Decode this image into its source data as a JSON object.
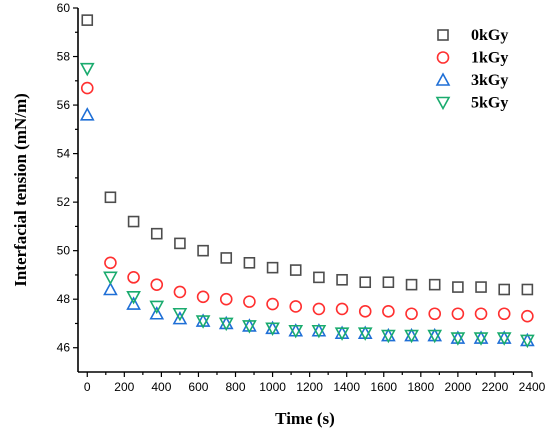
{
  "chart_data": {
    "type": "scatter",
    "xlabel": "Time (s)",
    "ylabel": "Interfacial tension (mN/m)",
    "xlim": [
      -50,
      2400
    ],
    "ylim": [
      45,
      60
    ],
    "xticks": [
      0,
      200,
      400,
      600,
      800,
      1000,
      1200,
      1400,
      1600,
      1800,
      2000,
      2200,
      2400
    ],
    "yticks": [
      46,
      48,
      50,
      52,
      54,
      56,
      58,
      60
    ],
    "grid": false,
    "legend_position": "top-right",
    "x": [
      0,
      125,
      250,
      375,
      500,
      625,
      750,
      875,
      1000,
      1125,
      1250,
      1375,
      1500,
      1625,
      1750,
      1875,
      2000,
      2125,
      2250,
      2375
    ],
    "series": [
      {
        "name": "0kGy",
        "marker": "square",
        "color": "#4d4d4d",
        "values": [
          59.5,
          52.2,
          51.2,
          50.7,
          50.3,
          50.0,
          49.7,
          49.5,
          49.3,
          49.2,
          48.9,
          48.8,
          48.7,
          48.7,
          48.6,
          48.6,
          48.5,
          48.5,
          48.4,
          48.4
        ]
      },
      {
        "name": "1kGy",
        "marker": "circle",
        "color": "#ff3030",
        "values": [
          56.7,
          49.5,
          48.9,
          48.6,
          48.3,
          48.1,
          48.0,
          47.9,
          47.8,
          47.7,
          47.6,
          47.6,
          47.5,
          47.5,
          47.4,
          47.4,
          47.4,
          47.4,
          47.4,
          47.3
        ]
      },
      {
        "name": "3kGy",
        "marker": "triangle-up",
        "color": "#1f6fd6",
        "values": [
          55.6,
          48.4,
          47.8,
          47.4,
          47.2,
          47.1,
          47.0,
          46.9,
          46.8,
          46.7,
          46.7,
          46.6,
          46.6,
          46.5,
          46.5,
          46.5,
          46.4,
          46.4,
          46.4,
          46.3
        ]
      },
      {
        "name": "5kGy",
        "marker": "triangle-down",
        "color": "#1aab6e",
        "values": [
          57.5,
          48.9,
          48.1,
          47.7,
          47.4,
          47.1,
          47.0,
          46.9,
          46.8,
          46.7,
          46.7,
          46.6,
          46.6,
          46.5,
          46.5,
          46.5,
          46.4,
          46.4,
          46.4,
          46.3
        ]
      }
    ]
  }
}
